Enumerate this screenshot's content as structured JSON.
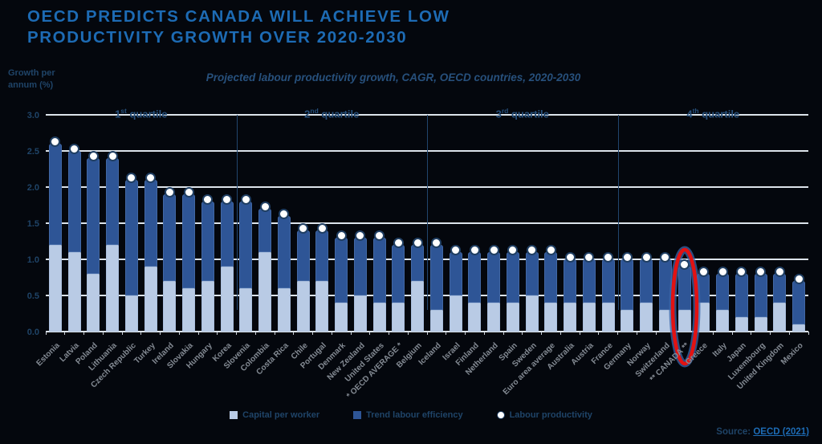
{
  "header": {
    "title_lines": [
      "OECD PREDICTS CANADA WILL ACHIEVE LOW",
      "PRODUCTIVITY GROWTH OVER 2020-2030"
    ],
    "subtitle": "Projected labour productivity growth, CAGR, OECD countries, 2020-2030"
  },
  "axis": {
    "y_label": "Growth per annum (%)",
    "y_ticks": [
      "3.0",
      "2.5",
      "2.0",
      "1.5",
      "1.0",
      "0.5",
      "0.0"
    ]
  },
  "quartiles": [
    {
      "num": "1",
      "ord": "st",
      "word": "quartile"
    },
    {
      "num": "2",
      "ord": "nd",
      "word": "quartile"
    },
    {
      "num": "3",
      "ord": "rd",
      "word": "quartile"
    },
    {
      "num": "4",
      "ord": "th",
      "word": "quartile"
    }
  ],
  "source": {
    "prefix": "Source:",
    "link": "OECD (2021)"
  },
  "colors": {
    "background": "#04070d",
    "title": "#1d6bb4",
    "bar_capital_light": "#b9cbe5",
    "bar_efficiency_dark": "#2e5596",
    "productivity_dot": "#ffffff",
    "gridline": "#dce3ea",
    "highlight_oval": "#e21212",
    "navy_text": "#1f4468",
    "country_label": "#848b94"
  },
  "chart_data": {
    "type": "bar",
    "subtype": "stacked-bars-with-total-dot",
    "title": "Projected labour productivity growth, CAGR, OECD countries, 2020-2030",
    "ylabel": "Growth per annum (%)",
    "ylim": [
      0,
      3
    ],
    "grid": true,
    "legend_position": "bottom",
    "highlight_index": 33,
    "quartile_dividers_after": [
      9,
      19,
      29
    ],
    "categories": [
      "Estonia",
      "Latvia",
      "Poland",
      "Lithuania",
      "Czech Republic",
      "Turkey",
      "Ireland",
      "Slovakia",
      "Hungary",
      "Korea",
      "Slovenia",
      "Colombia",
      "Costa Rica",
      "Chile",
      "Portugal",
      "Denmark",
      "New Zealand",
      "United States",
      "* OECD AVERAGE *",
      "Belgium",
      "Iceland",
      "Israel",
      "Finland",
      "Netherland",
      "Spain",
      "Sweden",
      "Euro area average",
      "Australia",
      "Austria",
      "France",
      "Germany",
      "Norway",
      "Switzerland",
      "** CANADA **",
      "Greece",
      "Italy",
      "Japan",
      "Luxembourg",
      "United Kingdom",
      "Mexico"
    ],
    "series": [
      {
        "name": "Capital per worker",
        "role": "stack-bottom",
        "color": "#b9cbe5",
        "values": [
          1.2,
          1.1,
          0.8,
          1.2,
          0.5,
          0.9,
          0.7,
          0.6,
          0.7,
          0.9,
          0.6,
          1.1,
          0.6,
          0.7,
          0.7,
          0.4,
          0.5,
          0.4,
          0.4,
          0.7,
          0.3,
          0.5,
          0.4,
          0.4,
          0.4,
          0.5,
          0.4,
          0.4,
          0.4,
          0.4,
          0.3,
          0.4,
          0.3,
          0.3,
          0.4,
          0.3,
          0.2,
          0.2,
          0.4,
          0.1
        ]
      },
      {
        "name": "Trend labour efficiency",
        "role": "stack-top",
        "color": "#2e5596",
        "values": [
          1.4,
          1.4,
          1.6,
          1.2,
          1.6,
          1.2,
          1.2,
          1.3,
          1.1,
          0.9,
          1.2,
          0.6,
          1.0,
          0.7,
          0.7,
          0.9,
          0.8,
          0.9,
          0.8,
          0.5,
          0.9,
          0.6,
          0.7,
          0.7,
          0.7,
          0.6,
          0.7,
          0.6,
          0.6,
          0.6,
          0.7,
          0.6,
          0.7,
          0.6,
          0.4,
          0.5,
          0.6,
          0.6,
          0.4,
          0.6
        ]
      },
      {
        "name": "Labour productivity",
        "role": "dot-marker",
        "color": "#ffffff",
        "values": [
          2.6,
          2.5,
          2.4,
          2.4,
          2.1,
          2.1,
          1.9,
          1.9,
          1.8,
          1.8,
          1.8,
          1.7,
          1.6,
          1.4,
          1.4,
          1.3,
          1.3,
          1.3,
          1.2,
          1.2,
          1.2,
          1.1,
          1.1,
          1.1,
          1.1,
          1.1,
          1.1,
          1.0,
          1.0,
          1.0,
          1.0,
          1.0,
          1.0,
          0.9,
          0.8,
          0.8,
          0.8,
          0.8,
          0.8,
          0.7
        ]
      }
    ]
  }
}
